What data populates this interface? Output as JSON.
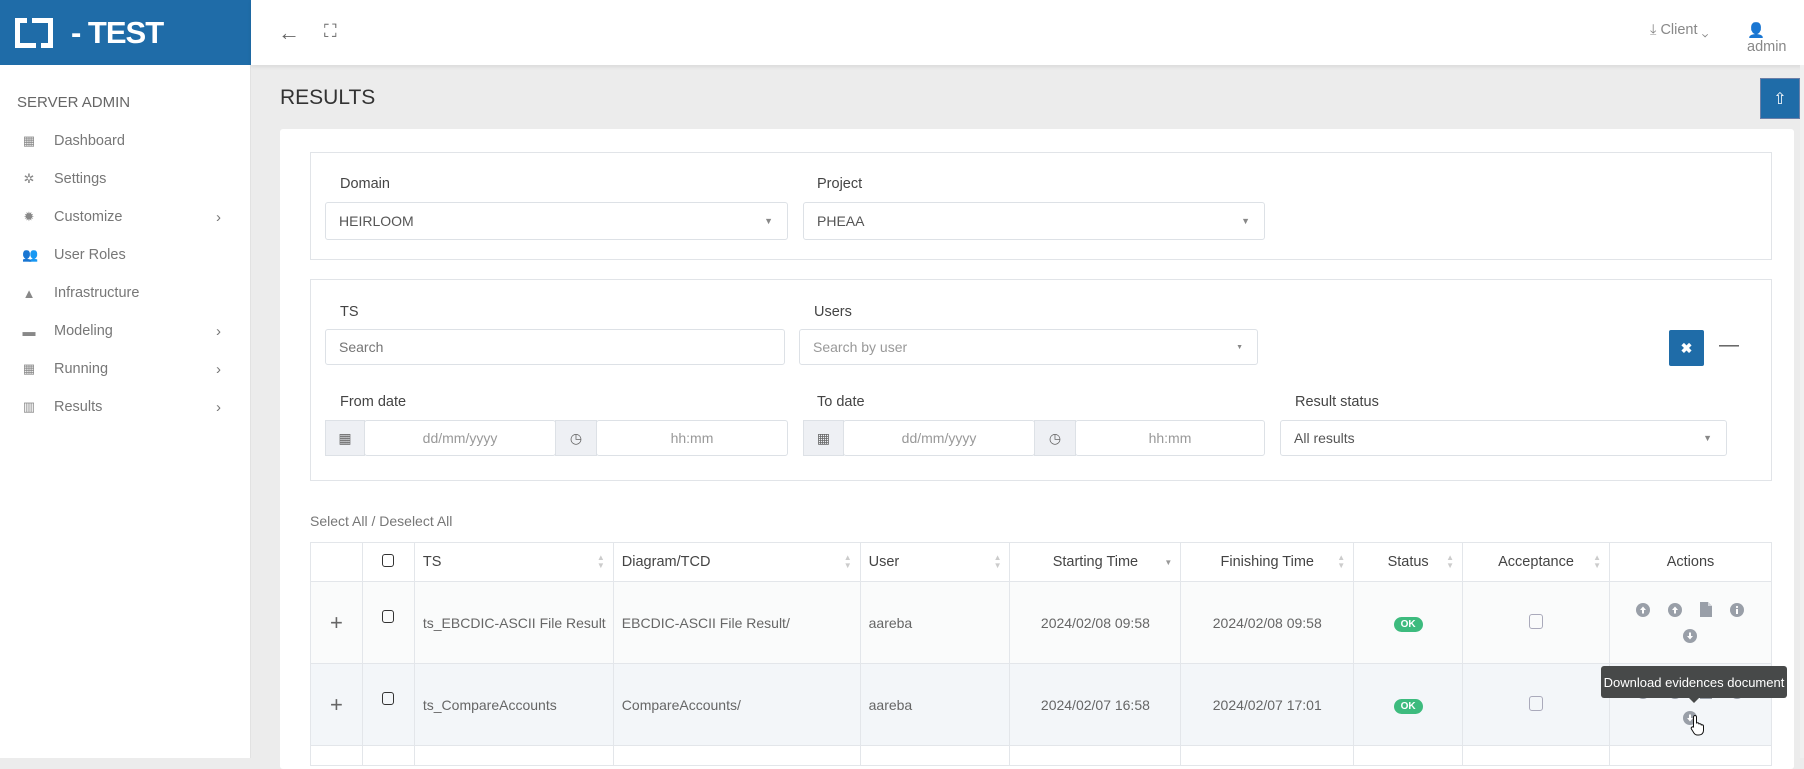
{
  "brand": {
    "title": "- TEST"
  },
  "sidebar": {
    "section_title": "SERVER ADMIN",
    "items": [
      {
        "label": "Dashboard",
        "icon": "th-large-icon",
        "glyph": "▦",
        "submenu": false
      },
      {
        "label": "Settings",
        "icon": "gear-icon",
        "glyph": "✲",
        "submenu": false
      },
      {
        "label": "Customize",
        "icon": "certificate-icon",
        "glyph": "✹",
        "submenu": true
      },
      {
        "label": "User Roles",
        "icon": "users-icon",
        "glyph": "👥",
        "submenu": false
      },
      {
        "label": "Infrastructure",
        "icon": "road-icon",
        "glyph": "▲",
        "submenu": false
      },
      {
        "label": "Modeling",
        "icon": "briefcase-icon",
        "glyph": "▬",
        "submenu": true
      },
      {
        "label": "Running",
        "icon": "calendar-icon",
        "glyph": "▦",
        "submenu": true
      },
      {
        "label": "Results",
        "icon": "bar-chart-icon",
        "glyph": "▥",
        "submenu": true
      }
    ]
  },
  "topbar": {
    "client_label": "Client",
    "user_label": "admin"
  },
  "page": {
    "title": "RESULTS"
  },
  "filters": {
    "domain_label": "Domain",
    "domain_value": "HEIRLOOM",
    "project_label": "Project",
    "project_value": "PHEAA",
    "ts_label": "TS",
    "ts_placeholder": "Search",
    "users_label": "Users",
    "users_placeholder": "Search by user",
    "from_label": "From date",
    "to_label": "To date",
    "date_placeholder": "dd/mm/yyyy",
    "time_placeholder": "hh:mm",
    "status_label": "Result status",
    "status_value": "All results"
  },
  "table": {
    "select_all": "Select All / Deselect All",
    "headers": [
      "TS",
      "Diagram/TCD",
      "User",
      "Starting Time",
      "Finishing Time",
      "Status",
      "Acceptance",
      "Actions"
    ],
    "rows": [
      {
        "ts": "ts_EBCDIC-ASCII File Result",
        "diagram": "EBCDIC-ASCII File Result/",
        "user": "aareba",
        "start": "2024/02/08 09:58",
        "finish": "2024/02/08 09:58",
        "status": "OK"
      },
      {
        "ts": "ts_CompareAccounts",
        "diagram": "CompareAccounts/",
        "user": "aareba",
        "start": "2024/02/07 16:58",
        "finish": "2024/02/07 17:01",
        "status": "OK"
      }
    ]
  },
  "tooltip": "Download evidences document",
  "colors": {
    "brand": "#1f6ca8",
    "ok": "#3dbb7e"
  }
}
